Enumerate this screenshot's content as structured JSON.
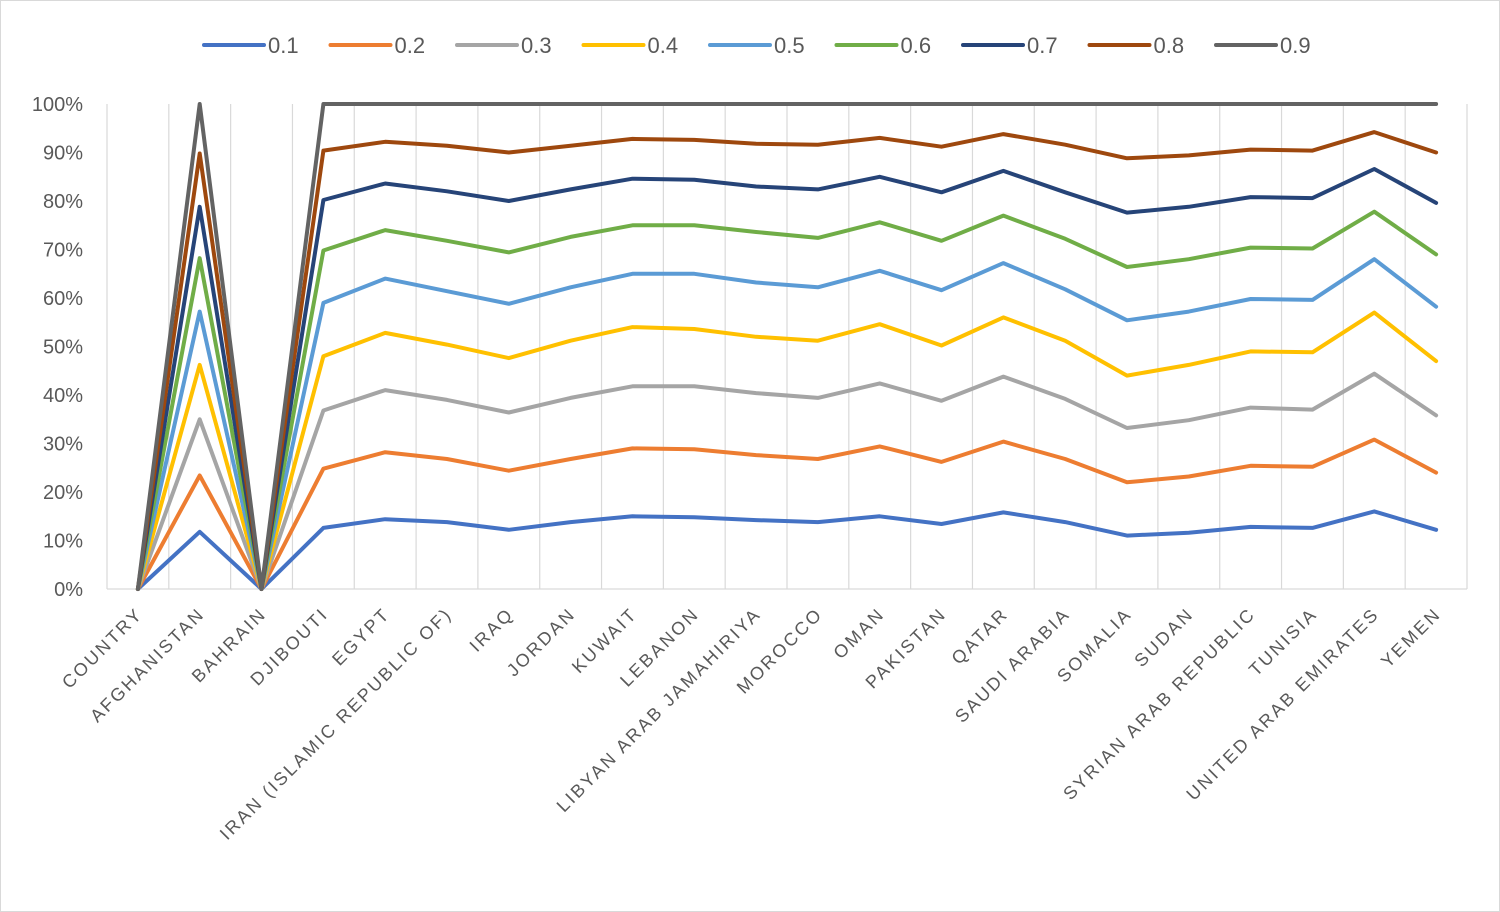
{
  "chart_data": {
    "type": "line",
    "title": "",
    "xlabel": "",
    "ylabel": "",
    "ylim": [
      0,
      1
    ],
    "y_tick_values": [
      0,
      0.1,
      0.2,
      0.3,
      0.4,
      0.5,
      0.6,
      0.7,
      0.8,
      0.9,
      1.0
    ],
    "y_tick_labels": [
      "0%",
      "10%",
      "20%",
      "30%",
      "40%",
      "50%",
      "60%",
      "70%",
      "80%",
      "90%",
      "100%"
    ],
    "grid": "vertical",
    "legend_position": "top",
    "categories": [
      "COUNTRY",
      "AFGHANISTAN",
      "BAHRAIN",
      "DJIBOUTI",
      "EGYPT",
      "IRAN (ISLAMIC REPUBLIC OF)",
      "IRAQ",
      "JORDAN",
      "KUWAIT",
      "LEBANON",
      "LIBYAN ARAB JAMAHIRIYA",
      "MOROCCO",
      "OMAN",
      "PAKISTAN",
      "QATAR",
      "SAUDI ARABIA",
      "SOMALIA",
      "SUDAN",
      "SYRIAN ARAB REPUBLIC",
      "TUNISIA",
      "UNITED ARAB EMIRATES",
      "YEMEN"
    ],
    "series": [
      {
        "name": "0.1",
        "color": "#4472C4",
        "values": [
          0,
          0.118,
          0,
          0.126,
          0.144,
          0.138,
          0.122,
          0.138,
          0.15,
          0.148,
          0.142,
          0.138,
          0.15,
          0.134,
          0.158,
          0.138,
          0.11,
          0.116,
          0.128,
          0.126,
          0.16,
          0.122
        ]
      },
      {
        "name": "0.2",
        "color": "#ED7D31",
        "values": [
          0,
          0.234,
          0,
          0.248,
          0.282,
          0.268,
          0.244,
          0.268,
          0.29,
          0.288,
          0.276,
          0.268,
          0.294,
          0.262,
          0.304,
          0.268,
          0.22,
          0.232,
          0.254,
          0.252,
          0.308,
          0.24
        ]
      },
      {
        "name": "0.3",
        "color": "#A5A5A5",
        "values": [
          0,
          0.35,
          0,
          0.368,
          0.41,
          0.39,
          0.364,
          0.394,
          0.418,
          0.418,
          0.404,
          0.394,
          0.424,
          0.388,
          0.438,
          0.392,
          0.332,
          0.348,
          0.374,
          0.37,
          0.444,
          0.358
        ]
      },
      {
        "name": "0.4",
        "color": "#FFC000",
        "values": [
          0,
          0.462,
          0,
          0.48,
          0.528,
          0.504,
          0.476,
          0.512,
          0.54,
          0.536,
          0.52,
          0.512,
          0.546,
          0.502,
          0.56,
          0.512,
          0.44,
          0.462,
          0.49,
          0.488,
          0.57,
          0.47
        ]
      },
      {
        "name": "0.5",
        "color": "#5B9BD5",
        "values": [
          0,
          0.572,
          0,
          0.59,
          0.64,
          0.614,
          0.588,
          0.622,
          0.65,
          0.65,
          0.632,
          0.622,
          0.656,
          0.616,
          0.672,
          0.618,
          0.554,
          0.572,
          0.598,
          0.596,
          0.68,
          0.582
        ]
      },
      {
        "name": "0.6",
        "color": "#70AD47",
        "values": [
          0,
          0.682,
          0,
          0.698,
          0.74,
          0.718,
          0.694,
          0.726,
          0.75,
          0.75,
          0.736,
          0.724,
          0.756,
          0.718,
          0.77,
          0.722,
          0.664,
          0.68,
          0.704,
          0.702,
          0.778,
          0.69
        ]
      },
      {
        "name": "0.7",
        "color": "#264478",
        "values": [
          0,
          0.788,
          0,
          0.802,
          0.836,
          0.82,
          0.8,
          0.824,
          0.846,
          0.844,
          0.83,
          0.824,
          0.85,
          0.818,
          0.862,
          0.818,
          0.776,
          0.788,
          0.808,
          0.806,
          0.866,
          0.796
        ]
      },
      {
        "name": "0.8",
        "color": "#9E480E",
        "values": [
          0,
          0.898,
          0,
          0.904,
          0.922,
          0.914,
          0.9,
          0.914,
          0.928,
          0.926,
          0.918,
          0.916,
          0.93,
          0.912,
          0.938,
          0.916,
          0.888,
          0.894,
          0.906,
          0.904,
          0.942,
          0.9
        ]
      },
      {
        "name": "0.9",
        "color": "#636363",
        "values": [
          0,
          1.0,
          0,
          1.0,
          1.0,
          1.0,
          1.0,
          1.0,
          1.0,
          1.0,
          1.0,
          1.0,
          1.0,
          1.0,
          1.0,
          1.0,
          1.0,
          1.0,
          1.0,
          1.0,
          1.0,
          1.0
        ]
      }
    ]
  }
}
